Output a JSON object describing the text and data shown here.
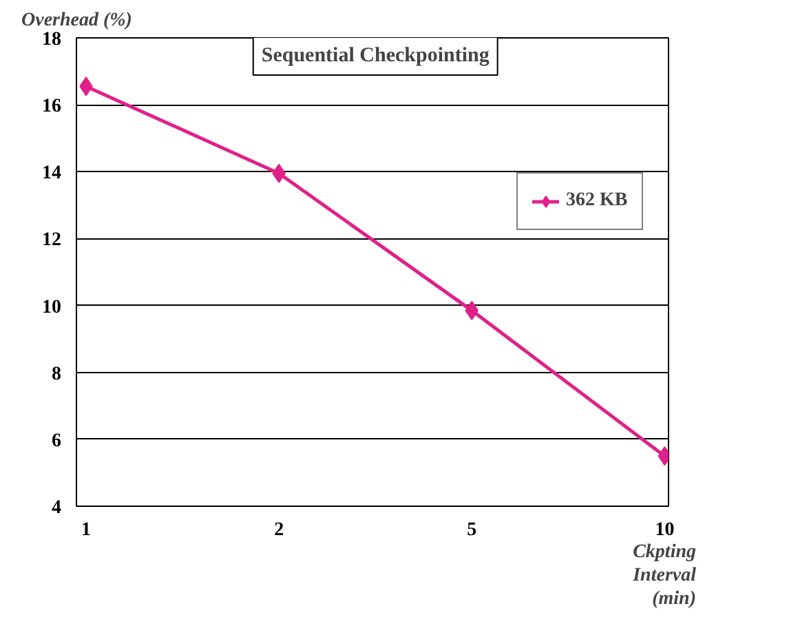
{
  "chart_data": {
    "type": "line",
    "title": "Sequential Checkpointing",
    "ylabel": "Overhead (%)",
    "xlabel": "Ckpting Interval (min)",
    "categories": [
      "1",
      "2",
      "5",
      "10"
    ],
    "series": [
      {
        "name": "362 KB",
        "color": "#e0218a",
        "values": [
          16.55,
          13.95,
          9.85,
          5.5
        ]
      }
    ],
    "ylim": [
      4,
      18
    ],
    "yticks": [
      4,
      6,
      8,
      10,
      12,
      14,
      16,
      18
    ],
    "grid": "y",
    "legend": "right",
    "marker": "diamond",
    "line_style": "solid"
  }
}
